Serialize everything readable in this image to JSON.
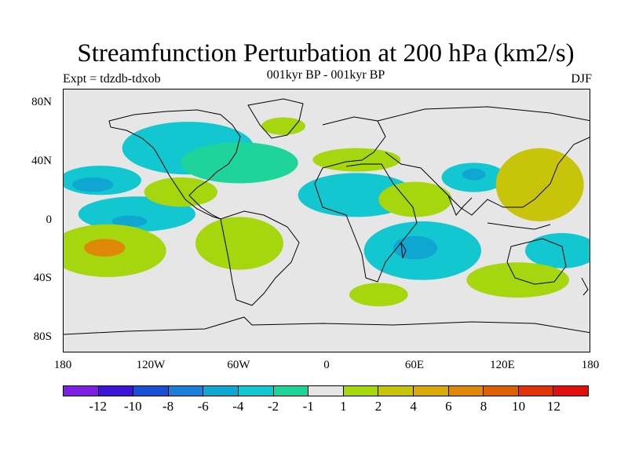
{
  "title": "Streamfunction Perturbation at 200 hPa (km2/s)",
  "subtitle": "001kyr BP - 001kyr BP",
  "experiment": "Expt = tdzdb-tdxob",
  "season": "DJF",
  "y_axis_labels": [
    "80N",
    "40N",
    "0",
    "40S",
    "80S"
  ],
  "x_axis_labels": [
    "180",
    "120W",
    "60W",
    "0",
    "60E",
    "120E",
    "180"
  ],
  "colorbar": {
    "colors": [
      "#7d1fe0",
      "#3b14d8",
      "#1b4fd6",
      "#1a7fd8",
      "#10a6d2",
      "#12c7cf",
      "#1fd49a",
      "#e6e6e6",
      "#a5d60e",
      "#c8c40a",
      "#d9a90a",
      "#df8808",
      "#dd5f06",
      "#e03309",
      "#e0100f"
    ],
    "labels": [
      "-12",
      "-10",
      "-8",
      "-6",
      "-4",
      "-2",
      "-1",
      "1",
      "2",
      "4",
      "6",
      "8",
      "10",
      "12"
    ]
  },
  "map_fields": {
    "type": "heatmap",
    "lon_range": [
      -180,
      180
    ],
    "lat_range": [
      -90,
      90
    ],
    "blobs": [
      {
        "lon": -155,
        "lat": 28,
        "rx": 28,
        "ry": 10,
        "level": "neg2"
      },
      {
        "lon": -160,
        "lat": 25,
        "rx": 14,
        "ry": 5,
        "level": "neg4"
      },
      {
        "lon": -130,
        "lat": 5,
        "rx": 40,
        "ry": 12,
        "level": "neg2"
      },
      {
        "lon": -135,
        "lat": 0,
        "rx": 12,
        "ry": 4,
        "level": "neg4"
      },
      {
        "lon": -95,
        "lat": 50,
        "rx": 45,
        "ry": 18,
        "level": "neg2"
      },
      {
        "lon": -60,
        "lat": 40,
        "rx": 40,
        "ry": 14,
        "level": "neg1"
      },
      {
        "lon": 20,
        "lat": 18,
        "rx": 40,
        "ry": 15,
        "level": "neg2"
      },
      {
        "lon": 65,
        "lat": -20,
        "rx": 40,
        "ry": 20,
        "level": "neg2"
      },
      {
        "lon": 60,
        "lat": -18,
        "rx": 15,
        "ry": 8,
        "level": "neg4"
      },
      {
        "lon": 100,
        "lat": 30,
        "rx": 22,
        "ry": 10,
        "level": "neg2"
      },
      {
        "lon": 100,
        "lat": 32,
        "rx": 8,
        "ry": 4,
        "level": "neg4"
      },
      {
        "lon": 160,
        "lat": -20,
        "rx": 25,
        "ry": 12,
        "level": "neg2"
      },
      {
        "lon": -150,
        "lat": -20,
        "rx": 40,
        "ry": 18,
        "level": "pos2"
      },
      {
        "lon": -152,
        "lat": -18,
        "rx": 14,
        "ry": 6,
        "level": "pos6"
      },
      {
        "lon": -60,
        "lat": -15,
        "rx": 30,
        "ry": 18,
        "level": "pos2"
      },
      {
        "lon": -100,
        "lat": 20,
        "rx": 25,
        "ry": 10,
        "level": "pos2"
      },
      {
        "lon": 20,
        "lat": 42,
        "rx": 30,
        "ry": 8,
        "level": "pos2"
      },
      {
        "lon": 60,
        "lat": 15,
        "rx": 25,
        "ry": 12,
        "level": "pos2"
      },
      {
        "lon": 145,
        "lat": 25,
        "rx": 30,
        "ry": 25,
        "level": "pos4"
      },
      {
        "lon": 130,
        "lat": -40,
        "rx": 35,
        "ry": 12,
        "level": "pos2"
      },
      {
        "lon": 35,
        "lat": -50,
        "rx": 20,
        "ry": 8,
        "level": "pos2"
      },
      {
        "lon": -30,
        "lat": 65,
        "rx": 15,
        "ry": 6,
        "level": "pos2"
      }
    ]
  }
}
